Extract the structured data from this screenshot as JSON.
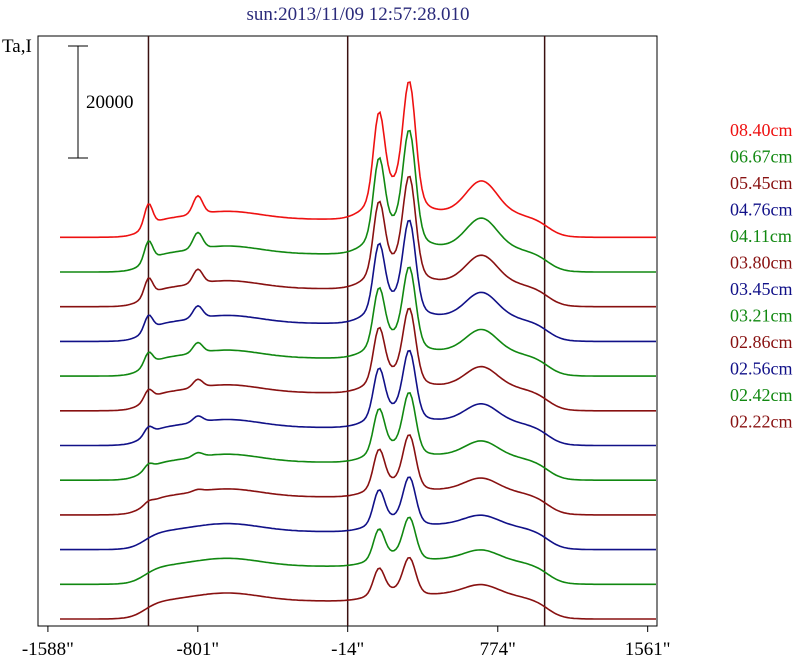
{
  "chart_data": {
    "type": "line",
    "title": "sun:2013/11/09 12:57:28.010",
    "ylabel": "Ta,I",
    "scale_bar_label": "20000",
    "x_tick_labels": [
      "-1588\"",
      "-801\"",
      "-14\"",
      "774\"",
      "1561\""
    ],
    "x_ticks": [
      -1588,
      -801,
      -14,
      774,
      1561
    ],
    "xlim": [
      -1640,
      1610
    ],
    "vertical_lines_x": [
      -1060,
      -14,
      1020
    ],
    "series": [
      {
        "name": "08.40cm",
        "color": "#ee1111",
        "baseline_index": 11,
        "amplitude": 1.45
      },
      {
        "name": "06.67cm",
        "color": "#118811",
        "baseline_index": 10,
        "amplitude": 1.3
      },
      {
        "name": "05.45cm",
        "color": "#881111",
        "baseline_index": 9,
        "amplitude": 1.18
      },
      {
        "name": "04.76cm",
        "color": "#111188",
        "baseline_index": 8,
        "amplitude": 1.08
      },
      {
        "name": "04.11cm",
        "color": "#118811",
        "baseline_index": 7,
        "amplitude": 0.95
      },
      {
        "name": "03.80cm",
        "color": "#881111",
        "baseline_index": 6,
        "amplitude": 0.88
      },
      {
        "name": "03.45cm",
        "color": "#111188",
        "baseline_index": 5,
        "amplitude": 0.8
      },
      {
        "name": "03.21cm",
        "color": "#118811",
        "baseline_index": 4,
        "amplitude": 0.72
      },
      {
        "name": "02.86cm",
        "color": "#881111",
        "baseline_index": 3,
        "amplitude": 0.64
      },
      {
        "name": "02.56cm",
        "color": "#111188",
        "baseline_index": 2,
        "amplitude": 0.56
      },
      {
        "name": "02.42cm",
        "color": "#118811",
        "baseline_index": 1,
        "amplitude": 0.5
      },
      {
        "name": "02.22cm",
        "color": "#881111",
        "baseline_index": 0,
        "amplitude": 0.44
      }
    ]
  }
}
